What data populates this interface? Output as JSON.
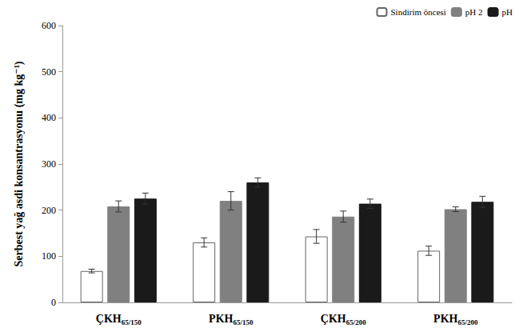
{
  "chart_data": {
    "type": "bar",
    "y_label": "Serbest yağ asdi konsantrasyonu (mg kg⁻¹)",
    "categories": [
      "ÇKH65/150",
      "PKH65/150",
      "ÇKH65/200",
      "PKH65/200"
    ],
    "series": [
      {
        "name": "Sindirim öncesi",
        "color": "#ffffff",
        "values": [
          68,
          130,
          143,
          112
        ],
        "errors": [
          4,
          10,
          15,
          10
        ]
      },
      {
        "name": "pH 2",
        "color": "#808080",
        "values": [
          208,
          220,
          186,
          202
        ],
        "errors": [
          12,
          20,
          12,
          5
        ]
      },
      {
        "name": "pH",
        "color": "#1a1a1a",
        "values": [
          225,
          260,
          214,
          218
        ],
        "errors": [
          12,
          10,
          10,
          12
        ]
      }
    ],
    "ylim": [
      0,
      600
    ],
    "yticks": [
      0,
      100,
      200,
      300,
      400,
      500,
      600
    ],
    "grid": false,
    "legend": "top-right"
  }
}
